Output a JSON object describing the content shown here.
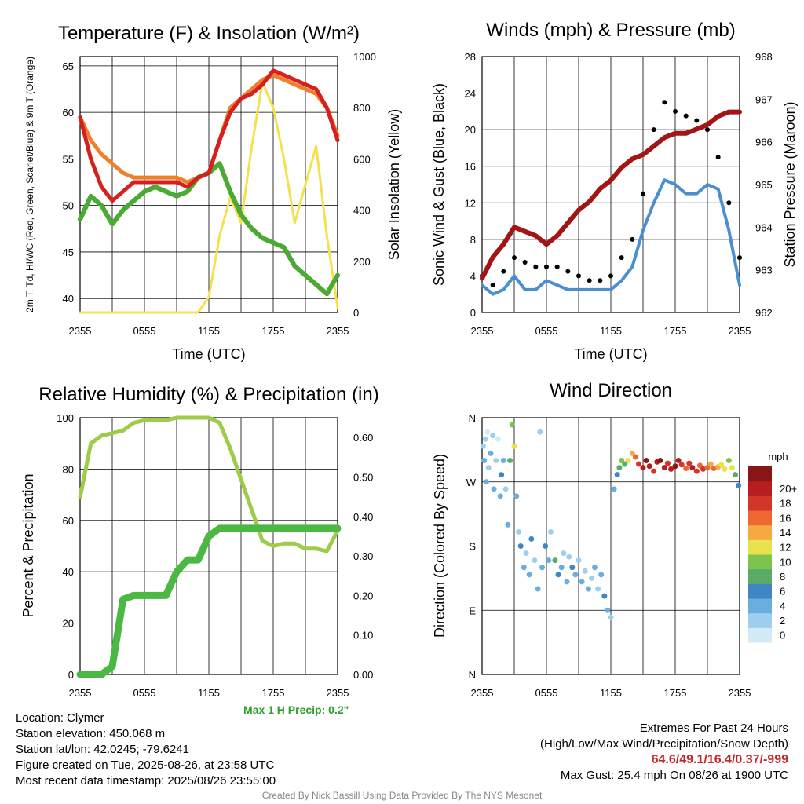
{
  "colors": {
    "red": "#d62020",
    "green": "#4aaa33",
    "orange": "#f07f2a",
    "yellow": "#f5e050",
    "blue": "#4b8fd0",
    "maroon": "#a31515",
    "black": "#000000",
    "lightgreen": "#9ccc4a",
    "precip": "#4bb843"
  },
  "info": {
    "location": "Location: Clymer",
    "elevation": "Station elevation: 450.068 m",
    "latlon": "Station lat/lon: 42.0245; -79.6241",
    "created": "Figure created on Tue, 2025-08-26, at 23:58 UTC",
    "recent": "Most recent data timestamp: 2025/08/26 23:55:00"
  },
  "extremes": {
    "heading": "Extremes For Past 24 Hours",
    "subheading": "(High/Low/Max Wind/Precipitation/Snow Depth)",
    "values": "64.6/49.1/16.4/0.37/-999",
    "gust": "Max Gust: 25.4 mph On 08/26 at 1900 UTC"
  },
  "max_precip": "Max 1 H Precip: 0.2\"",
  "credit": "Created By Nick Bassill Using Data Provided By The NYS Mesonet",
  "chart_data": [
    {
      "type": "line",
      "title": "Temperature (F) & Insolation (W/m²)",
      "xlabel": "Time (UTC)",
      "ylabel": "2m T, Td, HI/WC (Red, Green, Scarlet/Blue) & 9m T (Orange)",
      "y2label": "Solar Insolation (Yellow)",
      "x_ticks": [
        "2355",
        "0555",
        "1155",
        "1755",
        "2355"
      ],
      "ylim": [
        38.5,
        66
      ],
      "yticks": [
        40,
        45,
        50,
        55,
        60,
        65
      ],
      "y2lim": [
        0,
        1000
      ],
      "y2ticks": [
        0,
        200,
        400,
        600,
        800,
        1000
      ],
      "x_hours": [
        0,
        1,
        2,
        3,
        4,
        5,
        6,
        7,
        8,
        9,
        10,
        11,
        12,
        13,
        14,
        15,
        16,
        17,
        18,
        19,
        20,
        21,
        22,
        23,
        24
      ],
      "series": [
        {
          "values": [
            59.5,
            55.0,
            52.0,
            50.5,
            51.5,
            52.5,
            52.5,
            52.5,
            52.5,
            52.5,
            52.0,
            53.0,
            53.5,
            57.0,
            60.0,
            61.5,
            62.0,
            63.0,
            64.5,
            64.0,
            63.5,
            63.0,
            62.5,
            60.5,
            57.0
          ]
        },
        {
          "values": [
            48.5,
            51.0,
            50.0,
            48.0,
            49.5,
            50.5,
            51.5,
            52.0,
            51.5,
            51.0,
            51.5,
            53.0,
            53.5,
            54.5,
            51.5,
            49.0,
            47.5,
            46.5,
            46.0,
            45.5,
            43.5,
            42.5,
            41.5,
            40.5,
            42.5
          ]
        },
        {
          "values": [
            59.5,
            57.0,
            55.5,
            54.5,
            53.5,
            53.0,
            53.0,
            53.0,
            53.0,
            53.0,
            52.5,
            53.0,
            53.5,
            57.0,
            60.5,
            61.5,
            62.5,
            63.5,
            64.0,
            63.5,
            63.0,
            62.5,
            62.0,
            60.5,
            57.5
          ]
        },
        {
          "values": [
            0,
            0,
            0,
            0,
            0,
            0,
            0,
            0,
            0,
            0,
            0,
            0,
            60,
            300,
            450,
            350,
            650,
            900,
            800,
            600,
            350,
            500,
            650,
            300,
            20
          ]
        }
      ]
    },
    {
      "type": "line",
      "title": "Winds (mph) & Pressure (mb)",
      "xlabel": "Time (UTC)",
      "ylabel": "Sonic Wind & Gust (Blue, Black)",
      "y2label": "Station Pressure (Maroon)",
      "x_ticks": [
        "2355",
        "0555",
        "1155",
        "1755",
        "2355"
      ],
      "ylim": [
        0,
        28
      ],
      "yticks": [
        0,
        4,
        8,
        12,
        16,
        20,
        24,
        28
      ],
      "y2lim": [
        962,
        968
      ],
      "y2ticks": [
        962,
        963,
        964,
        965,
        966,
        967,
        968
      ],
      "x_hours": [
        0,
        1,
        2,
        3,
        4,
        5,
        6,
        7,
        8,
        9,
        10,
        11,
        12,
        13,
        14,
        15,
        16,
        17,
        18,
        19,
        20,
        21,
        22,
        23,
        24
      ],
      "series": [
        {
          "values": [
            3.0,
            2.0,
            2.5,
            4.0,
            2.5,
            2.5,
            3.5,
            3.0,
            2.5,
            2.5,
            2.5,
            2.5,
            2.5,
            3.5,
            5.0,
            9.0,
            12.0,
            14.5,
            14.0,
            13.0,
            13.0,
            14.0,
            13.5,
            9.0,
            3.0
          ]
        },
        {
          "values": [
            4.0,
            3.0,
            4.5,
            6.0,
            5.5,
            5.0,
            5.0,
            5.0,
            4.5,
            4.0,
            3.5,
            3.5,
            4.0,
            6.0,
            8.0,
            13.0,
            20.0,
            23.0,
            22.0,
            21.5,
            21.0,
            20.0,
            17.0,
            12.0,
            6.0
          ]
        },
        {
          "values": [
            962.8,
            963.3,
            963.6,
            964.0,
            963.9,
            963.8,
            963.6,
            963.8,
            964.1,
            964.4,
            964.6,
            964.9,
            965.1,
            965.4,
            965.6,
            965.7,
            965.9,
            966.1,
            966.2,
            966.2,
            966.3,
            966.4,
            966.6,
            966.7,
            966.7
          ]
        }
      ]
    },
    {
      "type": "line",
      "title": "Relative Humidity (%) & Precipitation (in)",
      "ylabel": "Percent & Precipitation",
      "x_ticks": [
        "2355",
        "0555",
        "1155",
        "1755",
        "2355"
      ],
      "ylim": [
        0,
        100
      ],
      "yticks": [
        0,
        20,
        40,
        60,
        80,
        100
      ],
      "y2lim": [
        0,
        0.65
      ],
      "y2ticks": [
        "0.00",
        "0.10",
        "0.20",
        "0.30",
        "0.40",
        "0.50",
        "0.60"
      ],
      "x_hours": [
        0,
        1,
        2,
        3,
        4,
        5,
        6,
        7,
        8,
        9,
        10,
        11,
        12,
        13,
        14,
        15,
        16,
        17,
        18,
        19,
        20,
        21,
        22,
        23,
        24
      ],
      "series": [
        {
          "values": [
            69,
            90,
            93,
            94,
            95,
            98,
            99,
            99,
            99,
            100,
            100,
            100,
            100,
            98,
            88,
            76,
            64,
            52,
            50,
            51,
            51,
            49,
            49,
            48,
            56
          ]
        },
        {
          "values": [
            0,
            0,
            0,
            0.02,
            0.19,
            0.2,
            0.2,
            0.2,
            0.2,
            0.26,
            0.29,
            0.29,
            0.35,
            0.37,
            0.37,
            0.37,
            0.37,
            0.37,
            0.37,
            0.37,
            0.37,
            0.37,
            0.37,
            0.37,
            0.37
          ]
        }
      ]
    },
    {
      "type": "scatter",
      "title": "Wind Direction",
      "ylabel": "Direction (Colored By Speed)",
      "x_ticks": [
        "2355",
        "0555",
        "1155",
        "1755",
        "2355"
      ],
      "ytick_labels": [
        "N",
        "E",
        "S",
        "W",
        "N"
      ],
      "ylim": [
        0,
        360
      ],
      "colorbar": {
        "unit": "mph",
        "labels": [
          "0",
          "2",
          "4",
          "6",
          "8",
          "10",
          "12",
          "14",
          "16",
          "18",
          "20+"
        ],
        "colors": [
          "#d3ebf8",
          "#9fcfee",
          "#6aaee0",
          "#3f86c4",
          "#5aab66",
          "#7dc44e",
          "#e8e24c",
          "#f6a841",
          "#ee6630",
          "#d33528",
          "#b61d20",
          "#8a1717"
        ]
      },
      "points": [
        {
          "x": 0.1,
          "y": 320,
          "s": 1
        },
        {
          "x": 0.2,
          "y": 300,
          "s": 2
        },
        {
          "x": 0.3,
          "y": 330,
          "s": 1
        },
        {
          "x": 0.4,
          "y": 270,
          "s": 2
        },
        {
          "x": 0.5,
          "y": 340,
          "s": 0
        },
        {
          "x": 0.6,
          "y": 290,
          "s": 1
        },
        {
          "x": 0.8,
          "y": 310,
          "s": 2
        },
        {
          "x": 1.0,
          "y": 335,
          "s": 1
        },
        {
          "x": 1.1,
          "y": 260,
          "s": 2
        },
        {
          "x": 1.3,
          "y": 300,
          "s": 1
        },
        {
          "x": 1.5,
          "y": 330,
          "s": 0
        },
        {
          "x": 1.7,
          "y": 250,
          "s": 2
        },
        {
          "x": 1.8,
          "y": 280,
          "s": 3
        },
        {
          "x": 2.0,
          "y": 300,
          "s": 2
        },
        {
          "x": 2.2,
          "y": 260,
          "s": 1
        },
        {
          "x": 2.4,
          "y": 210,
          "s": 2
        },
        {
          "x": 2.6,
          "y": 300,
          "s": 4
        },
        {
          "x": 2.8,
          "y": 350,
          "s": 5
        },
        {
          "x": 3.0,
          "y": 320,
          "s": 6
        },
        {
          "x": 3.2,
          "y": 250,
          "s": 2
        },
        {
          "x": 3.4,
          "y": 200,
          "s": 1
        },
        {
          "x": 3.6,
          "y": 180,
          "s": 3
        },
        {
          "x": 3.9,
          "y": 150,
          "s": 2
        },
        {
          "x": 4.1,
          "y": 170,
          "s": 1
        },
        {
          "x": 4.4,
          "y": 140,
          "s": 2
        },
        {
          "x": 4.6,
          "y": 190,
          "s": 3
        },
        {
          "x": 4.9,
          "y": 160,
          "s": 1
        },
        {
          "x": 5.2,
          "y": 120,
          "s": 2
        },
        {
          "x": 5.4,
          "y": 340,
          "s": 1
        },
        {
          "x": 5.6,
          "y": 150,
          "s": 2
        },
        {
          "x": 5.9,
          "y": 180,
          "s": 3
        },
        {
          "x": 6.2,
          "y": 160,
          "s": 2
        },
        {
          "x": 6.4,
          "y": 200,
          "s": 1
        },
        {
          "x": 6.8,
          "y": 160,
          "s": 4
        },
        {
          "x": 7.1,
          "y": 140,
          "s": 3
        },
        {
          "x": 7.4,
          "y": 150,
          "s": 2
        },
        {
          "x": 7.6,
          "y": 170,
          "s": 1
        },
        {
          "x": 7.9,
          "y": 130,
          "s": 2
        },
        {
          "x": 8.1,
          "y": 165,
          "s": 1
        },
        {
          "x": 8.4,
          "y": 150,
          "s": 3
        },
        {
          "x": 8.7,
          "y": 140,
          "s": 2
        },
        {
          "x": 9.0,
          "y": 160,
          "s": 1
        },
        {
          "x": 9.3,
          "y": 130,
          "s": 2
        },
        {
          "x": 9.6,
          "y": 145,
          "s": 1
        },
        {
          "x": 9.9,
          "y": 120,
          "s": 2
        },
        {
          "x": 10.2,
          "y": 135,
          "s": 1
        },
        {
          "x": 10.5,
          "y": 150,
          "s": 2
        },
        {
          "x": 10.8,
          "y": 120,
          "s": 1
        },
        {
          "x": 11.1,
          "y": 140,
          "s": 2
        },
        {
          "x": 11.4,
          "y": 110,
          "s": 3
        },
        {
          "x": 11.7,
          "y": 90,
          "s": 2
        },
        {
          "x": 12.0,
          "y": 80,
          "s": 1
        },
        {
          "x": 12.3,
          "y": 260,
          "s": 2
        },
        {
          "x": 12.6,
          "y": 280,
          "s": 3
        },
        {
          "x": 12.8,
          "y": 290,
          "s": 4
        },
        {
          "x": 13.0,
          "y": 300,
          "s": 5
        },
        {
          "x": 13.3,
          "y": 295,
          "s": 4
        },
        {
          "x": 13.6,
          "y": 300,
          "s": 6
        },
        {
          "x": 14.0,
          "y": 310,
          "s": 7
        },
        {
          "x": 14.3,
          "y": 305,
          "s": 8
        },
        {
          "x": 14.6,
          "y": 295,
          "s": 9
        },
        {
          "x": 15.0,
          "y": 290,
          "s": 10
        },
        {
          "x": 15.3,
          "y": 300,
          "s": 11
        },
        {
          "x": 15.6,
          "y": 292,
          "s": 10
        },
        {
          "x": 16.0,
          "y": 285,
          "s": 9
        },
        {
          "x": 16.3,
          "y": 298,
          "s": 10
        },
        {
          "x": 16.6,
          "y": 300,
          "s": 11
        },
        {
          "x": 17.0,
          "y": 290,
          "s": 10
        },
        {
          "x": 17.3,
          "y": 296,
          "s": 9
        },
        {
          "x": 17.6,
          "y": 288,
          "s": 10
        },
        {
          "x": 18.0,
          "y": 292,
          "s": 11
        },
        {
          "x": 18.3,
          "y": 300,
          "s": 10
        },
        {
          "x": 18.6,
          "y": 294,
          "s": 9
        },
        {
          "x": 19.0,
          "y": 289,
          "s": 8
        },
        {
          "x": 19.3,
          "y": 296,
          "s": 9
        },
        {
          "x": 19.6,
          "y": 290,
          "s": 10
        },
        {
          "x": 20.0,
          "y": 285,
          "s": 9
        },
        {
          "x": 20.3,
          "y": 293,
          "s": 8
        },
        {
          "x": 20.6,
          "y": 288,
          "s": 9
        },
        {
          "x": 21.0,
          "y": 290,
          "s": 8
        },
        {
          "x": 21.3,
          "y": 295,
          "s": 7
        },
        {
          "x": 21.6,
          "y": 289,
          "s": 8
        },
        {
          "x": 22.0,
          "y": 291,
          "s": 7
        },
        {
          "x": 22.3,
          "y": 294,
          "s": 6
        },
        {
          "x": 22.6,
          "y": 288,
          "s": 6
        },
        {
          "x": 23.0,
          "y": 300,
          "s": 5
        },
        {
          "x": 23.3,
          "y": 290,
          "s": 6
        },
        {
          "x": 23.6,
          "y": 280,
          "s": 4
        },
        {
          "x": 23.9,
          "y": 265,
          "s": 3
        }
      ]
    }
  ]
}
